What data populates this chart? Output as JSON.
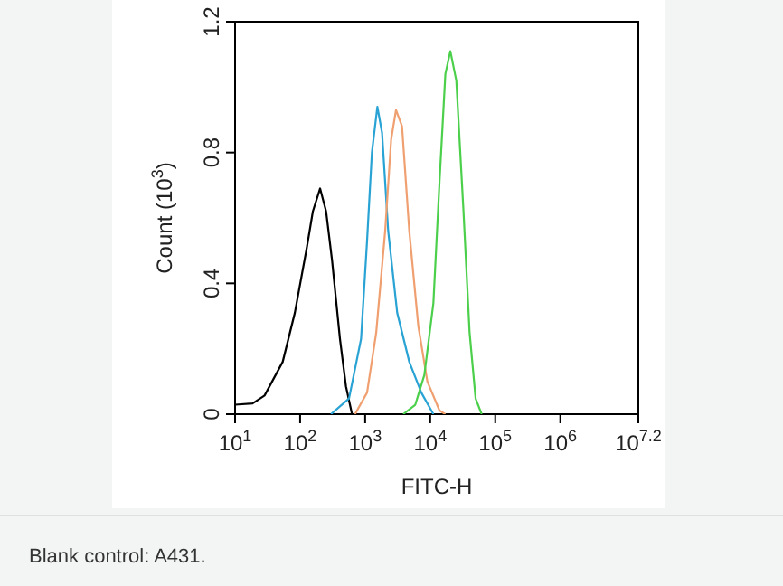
{
  "chart_data": {
    "type": "line",
    "xlabel": "FITC-H",
    "ylabel": "Count (10$^{3}$)",
    "log": "x",
    "grid": false,
    "line_style": "solid",
    "xlim": [
      10,
      15848932
    ],
    "xticks": [
      {
        "value": 10,
        "label": "10$^{1}$"
      },
      {
        "value": 100,
        "label": "10$^{2}$"
      },
      {
        "value": 1000,
        "label": "10$^{3}$"
      },
      {
        "value": 10000,
        "label": "10$^{4}$"
      },
      {
        "value": 100000,
        "label": "10$^{5}$"
      },
      {
        "value": 1000000,
        "label": "10$^{6}$"
      },
      {
        "value": 15848932,
        "label": "10$^{7.2}$"
      }
    ],
    "ylim": [
      0,
      1.2
    ],
    "yticks": [
      0,
      0.4,
      0.8,
      1.2
    ],
    "annotations": [
      "Blank control: A431."
    ],
    "series": [
      {
        "color": "#000000",
        "x": [
          10,
          18.6,
          28.4,
          54,
          83,
          127,
          157,
          203,
          251,
          310,
          410,
          507,
          628
        ],
        "values": [
          0.029,
          0.033,
          0.057,
          0.16,
          0.31,
          0.51,
          0.62,
          0.69,
          0.62,
          0.47,
          0.23,
          0.085,
          0
        ]
      },
      {
        "color": "#29a3d4",
        "x": [
          298,
          565,
          865,
          1070,
          1270,
          1540,
          1820,
          2260,
          3110,
          4770,
          7300,
          11200
        ],
        "values": [
          0,
          0.048,
          0.23,
          0.53,
          0.8,
          0.94,
          0.86,
          0.56,
          0.31,
          0.16,
          0.066,
          0
        ]
      },
      {
        "color": "#f0a070",
        "x": [
          698,
          1070,
          1480,
          2030,
          2510,
          2980,
          3690,
          4770,
          6560,
          9040,
          13900,
          17100
        ],
        "values": [
          0,
          0.066,
          0.25,
          0.56,
          0.84,
          0.93,
          0.88,
          0.56,
          0.27,
          0.1,
          0.011,
          0
        ]
      },
      {
        "color": "#4cd04c",
        "x": [
          3850,
          5900,
          8130,
          11200,
          13900,
          17100,
          20400,
          25200,
          32500,
          40300,
          49900,
          61800
        ],
        "values": [
          0,
          0.029,
          0.12,
          0.34,
          0.71,
          1.04,
          1.11,
          1.02,
          0.62,
          0.25,
          0.048,
          0
        ]
      }
    ]
  }
}
